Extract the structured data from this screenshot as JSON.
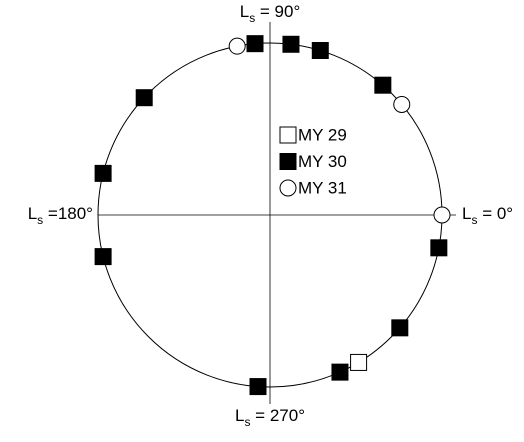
{
  "chart_data": {
    "type": "polar",
    "angle_labels": [
      {
        "value": 90,
        "prefix": "L",
        "sub": "s",
        "suffix": " = 90°"
      },
      {
        "value": 180,
        "prefix": "L",
        "sub": "s",
        "suffix": " =180°"
      },
      {
        "value": 270,
        "prefix": "L",
        "sub": "s",
        "suffix": " = 270°"
      },
      {
        "value": 0,
        "prefix": "L",
        "sub": "s",
        "suffix": " = 0°"
      }
    ],
    "series": [
      {
        "name": "MY 29",
        "marker": "square",
        "filled": false,
        "color": "#000000",
        "values": [
          301
        ]
      },
      {
        "name": "MY 30",
        "marker": "square",
        "filled": true,
        "color": "#000000",
        "values": [
          95,
          83,
          73,
          49,
          137,
          166,
          194,
          349,
          319,
          294,
          266
        ]
      },
      {
        "name": "MY 31",
        "marker": "circle",
        "filled": false,
        "color": "#000000",
        "values": [
          101,
          40,
          0
        ]
      }
    ]
  }
}
